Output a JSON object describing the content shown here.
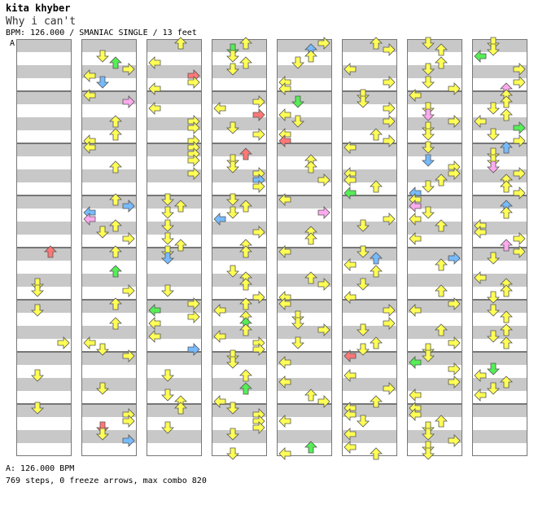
{
  "song": {
    "title": "kita khyber",
    "subtitle": "Why i can't",
    "meta_line": "BPM: 126.000 / SMANIAC SINGLE / 13 feet",
    "bpm_marker": "A",
    "bpm_footer": "A: 126.000 BPM",
    "stats_line": "769 steps, 0 freeze arrows, max combo 820"
  },
  "chart_data": {
    "type": "step-chart",
    "columns": 8,
    "measures_per_column": 8,
    "lanes": [
      "left",
      "down",
      "up",
      "right"
    ],
    "colors": {
      "quarter": "#ffff55",
      "eighth": "#55ee55",
      "sixteenth": "#77bbff",
      "fourth_red": "#ff7777",
      "triplet": "#ffaaee",
      "band": "#c8c8c8",
      "outline": "#555555"
    }
  }
}
